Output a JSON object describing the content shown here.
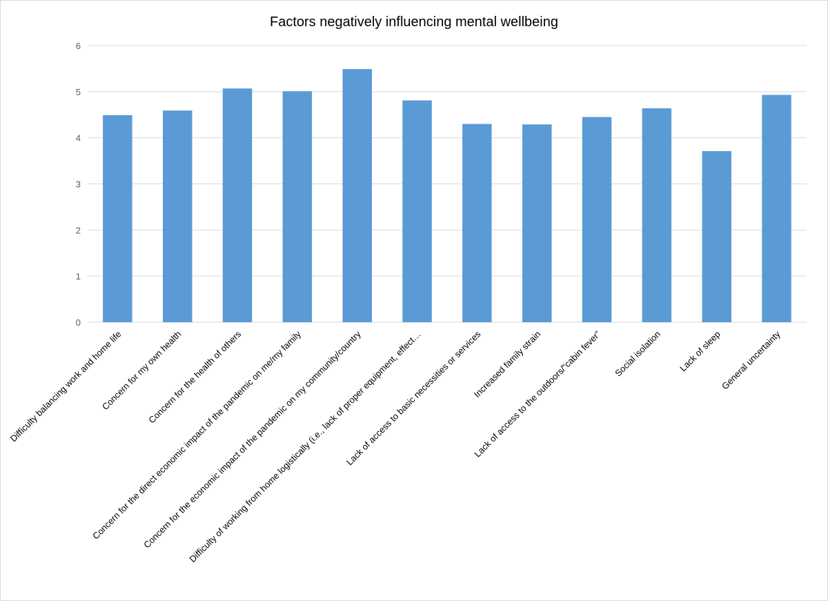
{
  "chart_data": {
    "type": "bar",
    "title": "Factors negatively influencing mental wellbeing",
    "xlabel": "",
    "ylabel": "",
    "ylim": [
      0,
      6
    ],
    "yticks": [
      0,
      1,
      2,
      3,
      4,
      5,
      6
    ],
    "grid": true,
    "legend": "none",
    "bar_color": "#5b9bd5",
    "categories": [
      "Difficulty balancing work and home life",
      "Concern for my own health",
      "Concern for the health of others",
      "Concern for the direct economic impact of the pandemic on me/my family",
      "Concern for the economic impact of the pandemic on my community/country",
      "Difficulty of working from home logistically (i.e., lack of proper equipment, effect…",
      "Lack of access to basic necessities or services",
      "Increased family strain",
      "Lack of access to the outdoors/“cabin fever”",
      "Social isolation",
      "Lack of sleep",
      "General uncertainty"
    ],
    "values": [
      4.49,
      4.59,
      5.07,
      5.01,
      5.49,
      4.81,
      4.3,
      4.29,
      4.45,
      4.64,
      3.71,
      4.93
    ]
  }
}
